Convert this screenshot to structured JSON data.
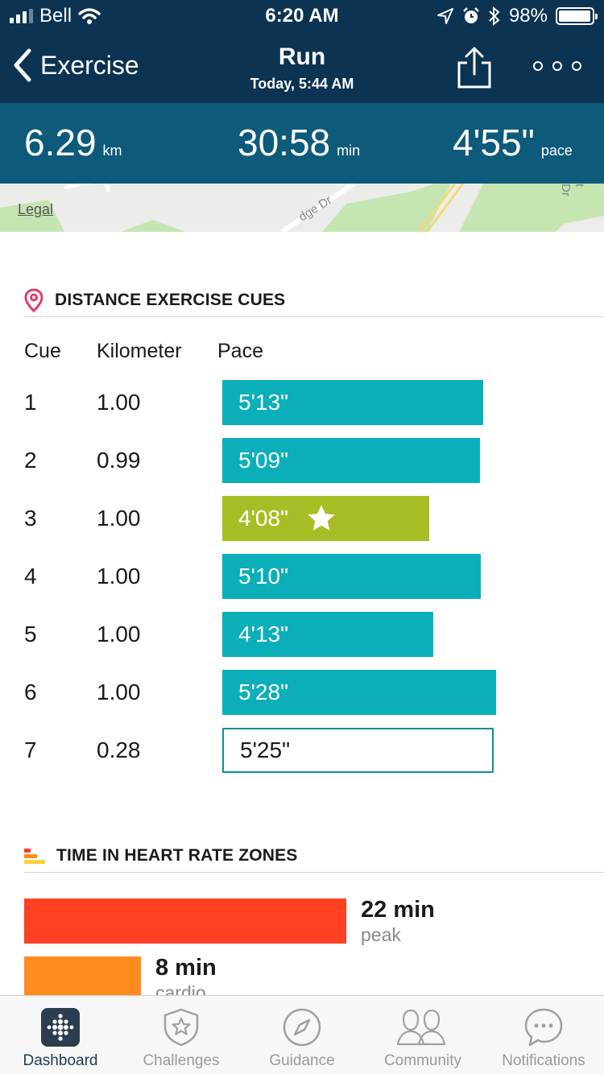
{
  "status_bar": {
    "carrier": "Bell",
    "time": "6:20 AM",
    "battery": "98%",
    "battery_level": 0.98
  },
  "nav": {
    "back_label": "Exercise",
    "title": "Run",
    "subtitle": "Today, 5:44 AM"
  },
  "stats": {
    "distance": {
      "value": "6.29",
      "unit": "km"
    },
    "duration": {
      "value": "30:58",
      "unit": "min"
    },
    "pace": {
      "value": "4'55\"",
      "unit": "pace"
    }
  },
  "map": {
    "legal_label": "Legal",
    "street_label": "dge Dr",
    "street_label_2": "t Dr"
  },
  "cues": {
    "title": "DISTANCE EXERCISE CUES",
    "columns": [
      "Cue",
      "Kilometer",
      "Pace"
    ],
    "rows": [
      {
        "cue": "1",
        "km": "1.00",
        "pace": "5'13\"",
        "seconds": 313
      },
      {
        "cue": "2",
        "km": "0.99",
        "pace": "5'09\"",
        "seconds": 309
      },
      {
        "cue": "3",
        "km": "1.00",
        "pace": "4'08\"",
        "seconds": 248
      },
      {
        "cue": "4",
        "km": "1.00",
        "pace": "5'10\"",
        "seconds": 310
      },
      {
        "cue": "5",
        "km": "1.00",
        "pace": "4'13\"",
        "seconds": 253
      },
      {
        "cue": "6",
        "km": "1.00",
        "pace": "5'28\"",
        "seconds": 328
      },
      {
        "cue": "7",
        "km": "0.28",
        "pace": "5'25\"",
        "seconds": 325
      }
    ]
  },
  "heart_rate": {
    "title": "TIME IN HEART RATE ZONES",
    "zones": [
      {
        "value": "22 min",
        "minutes": 22,
        "label": "peak",
        "color": "#ff4022"
      },
      {
        "value": "8 min",
        "minutes": 8,
        "label": "cardio",
        "color": "#ff8a1e"
      }
    ]
  },
  "tabs": [
    {
      "label": "Dashboard",
      "icon": "dashboard-icon",
      "active": true
    },
    {
      "label": "Challenges",
      "icon": "challenges-star-icon",
      "active": false
    },
    {
      "label": "Guidance",
      "icon": "compass-icon",
      "active": false
    },
    {
      "label": "Community",
      "icon": "community-people-icon",
      "active": false
    },
    {
      "label": "Notifications",
      "icon": "chat-bubble-icon",
      "active": false
    }
  ],
  "colors": {
    "header": "#0c3352",
    "stats_band": "#0e5a7a",
    "pace_bar": "#0bafba",
    "best_pace_bar": "#a8bd25",
    "location_pin": "#e23b6e"
  }
}
